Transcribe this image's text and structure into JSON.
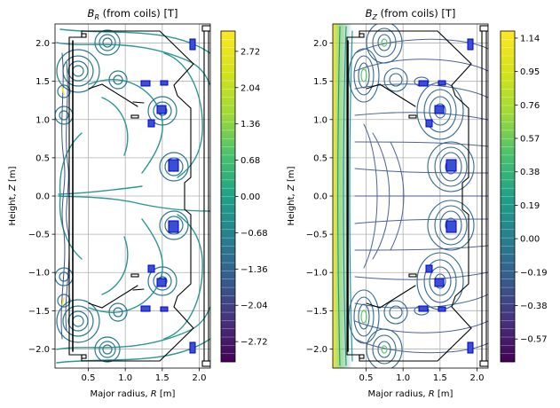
{
  "figure": {
    "background": "#ffffff"
  },
  "chart_data": [
    {
      "type": "contour",
      "title": "B_R (from coils) [T]",
      "title_symbol": "B",
      "title_sub": "R",
      "title_rest": " (from coils) [T]",
      "xlabel": "Major radius, R [m]",
      "xlabel_prefix": "Major radius, ",
      "xlabel_symbol": "R",
      "xlabel_suffix": " [m]",
      "ylabel": "Height, Z [m]",
      "ylabel_prefix": "Height, ",
      "ylabel_symbol": "Z",
      "ylabel_suffix": " [m]",
      "xlim": [
        0.05,
        2.15
      ],
      "ylim": [
        -2.25,
        2.25
      ],
      "xticks": [
        0.5,
        1.0,
        1.5,
        2.0
      ],
      "xtick_labels": [
        "0.5",
        "1.0",
        "1.5",
        "2.0"
      ],
      "yticks": [
        -2.0,
        -1.5,
        -1.0,
        -0.5,
        0.0,
        0.5,
        1.0,
        1.5,
        2.0
      ],
      "ytick_labels": [
        "−2.0",
        "−1.5",
        "−1.0",
        "−0.5",
        "0.0",
        "0.5",
        "1.0",
        "1.5",
        "2.0"
      ],
      "grid": true,
      "colormap": "viridis",
      "colorbar": {
        "vmin": -3.1,
        "vmax": 3.1,
        "ticks": [
          -2.72,
          -2.04,
          -1.36,
          -0.68,
          0.0,
          0.68,
          1.36,
          2.04,
          2.72
        ],
        "tick_labels": [
          "−2.72",
          "−2.04",
          "−1.36",
          "−0.68",
          "0.00",
          "0.68",
          "1.36",
          "2.04",
          "2.72"
        ],
        "style": "banded"
      }
    },
    {
      "type": "contour",
      "title": "B_Z (from coils) [T]",
      "title_symbol": "B",
      "title_sub": "Z",
      "title_rest": " (from coils) [T]",
      "xlabel": "Major radius, R [m]",
      "xlabel_prefix": "Major radius, ",
      "xlabel_symbol": "R",
      "xlabel_suffix": " [m]",
      "ylabel": "Height, Z [m]",
      "ylabel_prefix": "Height, ",
      "ylabel_symbol": "Z",
      "ylabel_suffix": " [m]",
      "xlim": [
        0.05,
        2.15
      ],
      "ylim": [
        -2.25,
        2.25
      ],
      "xticks": [
        0.5,
        1.0,
        1.5,
        2.0
      ],
      "xtick_labels": [
        "0.5",
        "1.0",
        "1.5",
        "2.0"
      ],
      "yticks": [
        -2.0,
        -1.5,
        -1.0,
        -0.5,
        0.0,
        0.5,
        1.0,
        1.5,
        2.0
      ],
      "ytick_labels": [
        "−2.0",
        "−1.5",
        "−1.0",
        "−0.5",
        "0.0",
        "0.5",
        "1.0",
        "1.5",
        "2.0"
      ],
      "grid": true,
      "colormap": "viridis",
      "colorbar": {
        "vmin": -0.7,
        "vmax": 1.18,
        "ticks": [
          -0.57,
          -0.38,
          -0.19,
          0.0,
          0.19,
          0.38,
          0.57,
          0.76,
          0.95,
          1.14
        ],
        "tick_labels": [
          "−0.57",
          "−0.38",
          "−0.19",
          "0.00",
          "0.19",
          "0.38",
          "0.57",
          "0.76",
          "0.95",
          "1.14"
        ],
        "style": "banded"
      }
    }
  ]
}
